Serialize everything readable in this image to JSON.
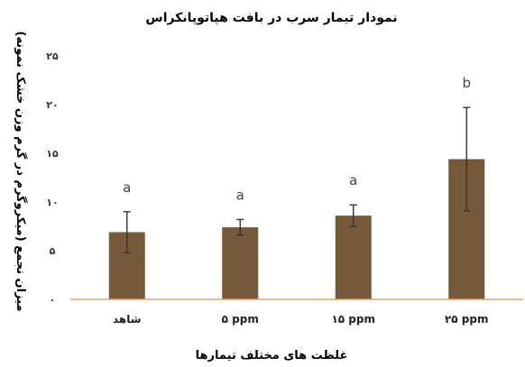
{
  "chart_data": {
    "type": "bar",
    "title": "نمودار تیمار سرب در بافت هپاتوپانکراس",
    "xlabel": "غلظت های مختلف تیمارها",
    "ylabel": "میزان تجمع (میکروگرم در گرم وزن خشک نمونه)",
    "categories": [
      "شاهد",
      "۵ ppm",
      "۱۵ ppm",
      "۲۵ ppm"
    ],
    "values": [
      6.9,
      7.4,
      8.6,
      14.4
    ],
    "error": [
      2.1,
      0.8,
      1.1,
      5.3
    ],
    "significance_letters": [
      "a",
      "a",
      "a",
      "b"
    ],
    "ylim": [
      0,
      25
    ],
    "yticks": [
      0,
      5,
      10,
      15,
      20,
      25
    ],
    "ytick_labels": [
      "۰",
      "۵",
      "۱۰",
      "۱۵",
      "۲۰",
      "۲۵"
    ],
    "grid": false,
    "colors": {
      "bar": "#76583b",
      "axis": "#e8a060",
      "error": "#333333"
    }
  }
}
